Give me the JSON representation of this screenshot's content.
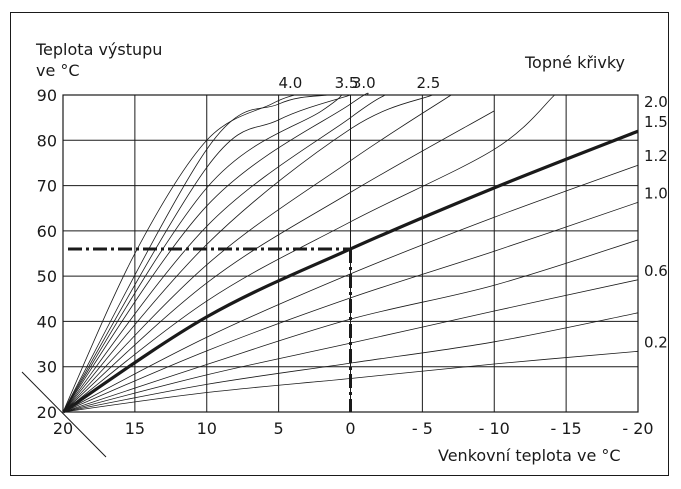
{
  "chart_data": {
    "type": "line",
    "ylabel_line1": "Teplota výstupu",
    "ylabel_line2": "ve °C",
    "xlabel": "Venkovní teplota ve °C",
    "curves_title": "Topné křivky",
    "x_ticks": [
      "20",
      "15",
      "10",
      "5",
      "0",
      "- 5",
      "- 10",
      "- 15",
      "- 20"
    ],
    "x_tick_values": [
      20,
      15,
      10,
      5,
      0,
      -5,
      -10,
      -15,
      -20
    ],
    "y_ticks": [
      "20",
      "30",
      "40",
      "50",
      "60",
      "70",
      "80",
      "90"
    ],
    "y_tick_values": [
      20,
      30,
      40,
      50,
      60,
      70,
      80,
      90
    ],
    "xlim": [
      20,
      -20
    ],
    "ylim": [
      20,
      90
    ],
    "grid": true,
    "series": [
      {
        "name": "0.2",
        "x": [
          20,
          10,
          0,
          -10,
          -20
        ],
        "y": [
          20,
          24.3,
          27.4,
          30.6,
          33.4
        ],
        "labeled": true
      },
      {
        "name": "",
        "x": [
          20,
          10,
          0,
          -10,
          -20
        ],
        "y": [
          20,
          26.1,
          30.8,
          35.5,
          41.9
        ],
        "labeled": false
      },
      {
        "name": "0.6",
        "x": [
          20,
          10,
          0,
          -10,
          -20
        ],
        "y": [
          20,
          28.2,
          35.2,
          42.3,
          49.2
        ],
        "labeled": true
      },
      {
        "name": "",
        "x": [
          20,
          10,
          0,
          -10,
          -20
        ],
        "y": [
          20,
          30.5,
          40.5,
          48.0,
          58.0
        ],
        "labeled": false
      },
      {
        "name": "1.0",
        "x": [
          20,
          10,
          0,
          -10,
          -20
        ],
        "y": [
          20,
          33.5,
          45.2,
          55.5,
          66.3
        ],
        "labeled": true
      },
      {
        "name": "1.2",
        "x": [
          20,
          10,
          0,
          -10,
          -20
        ],
        "y": [
          20,
          36.5,
          50.5,
          63.0,
          74.5
        ],
        "labeled": true
      },
      {
        "name": "1.5",
        "x": [
          20,
          10,
          0,
          -10,
          -20
        ],
        "y": [
          20,
          41.0,
          56.0,
          69.5,
          82.0
        ],
        "labeled": true,
        "highlight": true
      },
      {
        "name": "",
        "x": [
          20,
          10,
          0,
          -10,
          -14.2
        ],
        "y": [
          20,
          44.5,
          62.0,
          78.0,
          90.0
        ],
        "labeled": false
      },
      {
        "name": "2.0",
        "x": [
          20,
          10,
          0,
          -10
        ],
        "y": [
          20,
          48.5,
          68.5,
          86.5
        ],
        "labeled": true
      },
      {
        "name": "",
        "x": [
          20,
          10,
          0,
          -7.0
        ],
        "y": [
          20,
          52.5,
          75.5,
          90.0
        ],
        "labeled": false
      },
      {
        "name": "2.5",
        "x": [
          20,
          10,
          0,
          -5.7
        ],
        "y": [
          20,
          57.0,
          82.5,
          90.0
        ],
        "labeled": true
      },
      {
        "name": "",
        "x": [
          20,
          10,
          0,
          -2.4
        ],
        "y": [
          20,
          61.0,
          85.0,
          90.0
        ],
        "labeled": false
      },
      {
        "name": "3.0",
        "x": [
          20,
          10,
          0,
          -1.2
        ],
        "y": [
          20,
          65.5,
          88.0,
          90.0
        ],
        "labeled": true
      },
      {
        "name": "",
        "x": [
          20,
          10,
          2.0,
          0.6
        ],
        "y": [
          20,
          69.5,
          86.5,
          90.0
        ],
        "labeled": false
      },
      {
        "name": "3.5",
        "x": [
          20,
          10,
          5.0,
          0.0
        ],
        "y": [
          20,
          74.0,
          84.5,
          90.0
        ],
        "labeled": true
      },
      {
        "name": "",
        "x": [
          20,
          10,
          5.0,
          1.6
        ],
        "y": [
          20,
          78.0,
          88.0,
          90.0
        ],
        "labeled": false
      },
      {
        "name": "4.0",
        "x": [
          20,
          15,
          10,
          5.5,
          3.9
        ],
        "y": [
          20,
          55.0,
          80.0,
          88.0,
          90.0
        ],
        "labeled": true
      }
    ],
    "reference": {
      "x": 0,
      "y": 56
    }
  }
}
